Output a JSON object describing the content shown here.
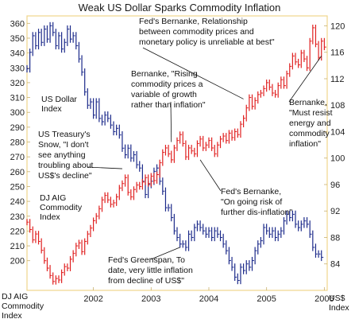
{
  "chart_data": {
    "type": "line",
    "title": "Weak US Dollar Sparks Commodity Inflation",
    "x_ticks": [
      "2002",
      "2003",
      "2004",
      "2005",
      "2006"
    ],
    "left_axis": {
      "label_lines": [
        "DJ AIG",
        "Commodity",
        "Index"
      ],
      "ticks": [
        200,
        210,
        220,
        230,
        240,
        250,
        260,
        270,
        280,
        290,
        300,
        310,
        320,
        330,
        340,
        350,
        360
      ],
      "range": [
        180,
        365
      ]
    },
    "right_axis": {
      "label_lines": [
        "US$",
        "Index"
      ],
      "ticks": [
        84,
        88,
        92,
        96,
        100,
        104,
        108,
        112,
        116,
        120
      ],
      "range": [
        80.0,
        121.5
      ]
    },
    "series": [
      {
        "name": "US Dollar Index",
        "axis": "right",
        "color": "#1c2a8a",
        "points": [
          [
            2001.35,
            113.5
          ],
          [
            2001.4,
            116.0
          ],
          [
            2001.45,
            118.5
          ],
          [
            2001.5,
            117.0
          ],
          [
            2001.55,
            119.0
          ],
          [
            2001.6,
            117.5
          ],
          [
            2001.65,
            119.5
          ],
          [
            2001.7,
            118.0
          ],
          [
            2001.75,
            120.0
          ],
          [
            2001.8,
            119.0
          ],
          [
            2001.85,
            117.0
          ],
          [
            2001.9,
            118.5
          ],
          [
            2001.95,
            116.5
          ],
          [
            2002.0,
            117.5
          ],
          [
            2002.05,
            119.5
          ],
          [
            2002.1,
            118.0
          ],
          [
            2002.15,
            118.5
          ],
          [
            2002.2,
            117.0
          ],
          [
            2002.25,
            115.0
          ],
          [
            2002.3,
            113.0
          ],
          [
            2002.35,
            110.0
          ],
          [
            2002.4,
            108.0
          ],
          [
            2002.45,
            108.5
          ],
          [
            2002.5,
            106.5
          ],
          [
            2002.55,
            108.5
          ],
          [
            2002.6,
            106.0
          ],
          [
            2002.65,
            105.5
          ],
          [
            2002.7,
            106.5
          ],
          [
            2002.75,
            106.0
          ],
          [
            2002.8,
            105.0
          ],
          [
            2002.85,
            104.0
          ],
          [
            2002.9,
            104.5
          ],
          [
            2002.95,
            103.5
          ],
          [
            2003.0,
            101.5
          ],
          [
            2003.05,
            100.5
          ],
          [
            2003.1,
            101.5
          ],
          [
            2003.15,
            100.0
          ],
          [
            2003.2,
            100.5
          ],
          [
            2003.25,
            99.0
          ],
          [
            2003.3,
            98.5
          ],
          [
            2003.35,
            96.5
          ],
          [
            2003.4,
            94.5
          ],
          [
            2003.45,
            96.0
          ],
          [
            2003.5,
            96.5
          ],
          [
            2003.55,
            98.0
          ],
          [
            2003.6,
            98.5
          ],
          [
            2003.65,
            96.5
          ],
          [
            2003.7,
            95.0
          ],
          [
            2003.75,
            92.5
          ],
          [
            2003.8,
            92.5
          ],
          [
            2003.85,
            91.0
          ],
          [
            2003.9,
            89.0
          ],
          [
            2003.95,
            88.0
          ],
          [
            2004.0,
            87.0
          ],
          [
            2004.05,
            87.0
          ],
          [
            2004.1,
            86.5
          ],
          [
            2004.15,
            88.5
          ],
          [
            2004.2,
            88.0
          ],
          [
            2004.25,
            89.5
          ],
          [
            2004.3,
            90.0
          ],
          [
            2004.35,
            89.5
          ],
          [
            2004.4,
            89.0
          ],
          [
            2004.45,
            88.5
          ],
          [
            2004.5,
            89.0
          ],
          [
            2004.55,
            88.0
          ],
          [
            2004.6,
            89.0
          ],
          [
            2004.65,
            88.5
          ],
          [
            2004.7,
            88.0
          ],
          [
            2004.75,
            87.0
          ],
          [
            2004.8,
            86.0
          ],
          [
            2004.85,
            84.5
          ],
          [
            2004.9,
            83.5
          ],
          [
            2004.95,
            82.0
          ],
          [
            2005.0,
            81.5
          ],
          [
            2005.05,
            83.5
          ],
          [
            2005.1,
            83.0
          ],
          [
            2005.15,
            84.0
          ],
          [
            2005.2,
            83.5
          ],
          [
            2005.25,
            84.5
          ],
          [
            2005.3,
            86.0
          ],
          [
            2005.35,
            87.0
          ],
          [
            2005.4,
            87.5
          ],
          [
            2005.45,
            89.5
          ],
          [
            2005.5,
            89.0
          ],
          [
            2005.55,
            88.5
          ],
          [
            2005.6,
            89.0
          ],
          [
            2005.65,
            88.0
          ],
          [
            2005.7,
            88.5
          ],
          [
            2005.75,
            89.0
          ],
          [
            2005.8,
            90.5
          ],
          [
            2005.85,
            91.5
          ],
          [
            2005.9,
            91.0
          ],
          [
            2005.95,
            91.5
          ],
          [
            2006.0,
            90.0
          ],
          [
            2006.05,
            89.5
          ],
          [
            2006.1,
            90.0
          ],
          [
            2006.15,
            90.5
          ],
          [
            2006.2,
            90.0
          ],
          [
            2006.25,
            88.5
          ],
          [
            2006.3,
            86.5
          ],
          [
            2006.35,
            85.5
          ],
          [
            2006.4,
            85.5
          ],
          [
            2006.45,
            85.0
          ]
        ]
      },
      {
        "name": "DJ AIG Commodity Index",
        "axis": "left",
        "color": "#e02020",
        "points": [
          [
            2001.35,
            226
          ],
          [
            2001.4,
            221
          ],
          [
            2001.45,
            214
          ],
          [
            2001.5,
            218
          ],
          [
            2001.55,
            213
          ],
          [
            2001.6,
            207
          ],
          [
            2001.65,
            200
          ],
          [
            2001.7,
            195
          ],
          [
            2001.75,
            190
          ],
          [
            2001.8,
            186
          ],
          [
            2001.85,
            188
          ],
          [
            2001.9,
            187
          ],
          [
            2001.95,
            192
          ],
          [
            2002.0,
            196
          ],
          [
            2002.05,
            195
          ],
          [
            2002.1,
            201
          ],
          [
            2002.15,
            205
          ],
          [
            2002.2,
            210
          ],
          [
            2002.25,
            212
          ],
          [
            2002.3,
            206
          ],
          [
            2002.35,
            213
          ],
          [
            2002.4,
            218
          ],
          [
            2002.45,
            222
          ],
          [
            2002.5,
            227
          ],
          [
            2002.55,
            230
          ],
          [
            2002.6,
            235
          ],
          [
            2002.65,
            241
          ],
          [
            2002.7,
            244
          ],
          [
            2002.75,
            241
          ],
          [
            2002.8,
            238
          ],
          [
            2002.85,
            239
          ],
          [
            2002.9,
            243
          ],
          [
            2002.95,
            249
          ],
          [
            2003.0,
            252
          ],
          [
            2003.05,
            256
          ],
          [
            2003.1,
            246
          ],
          [
            2003.15,
            243
          ],
          [
            2003.2,
            248
          ],
          [
            2003.25,
            251
          ],
          [
            2003.3,
            250
          ],
          [
            2003.35,
            253
          ],
          [
            2003.4,
            256
          ],
          [
            2003.45,
            252
          ],
          [
            2003.5,
            257
          ],
          [
            2003.55,
            254
          ],
          [
            2003.6,
            258
          ],
          [
            2003.65,
            266
          ],
          [
            2003.7,
            273
          ],
          [
            2003.75,
            276
          ],
          [
            2003.8,
            272
          ],
          [
            2003.85,
            268
          ],
          [
            2003.9,
            276
          ],
          [
            2003.95,
            281
          ],
          [
            2004.0,
            285
          ],
          [
            2004.05,
            279
          ],
          [
            2004.1,
            270
          ],
          [
            2004.15,
            276
          ],
          [
            2004.2,
            274
          ],
          [
            2004.25,
            272
          ],
          [
            2004.3,
            279
          ],
          [
            2004.35,
            282
          ],
          [
            2004.4,
            276
          ],
          [
            2004.45,
            278
          ],
          [
            2004.5,
            281
          ],
          [
            2004.55,
            276
          ],
          [
            2004.6,
            272
          ],
          [
            2004.65,
            278
          ],
          [
            2004.7,
            282
          ],
          [
            2004.75,
            284
          ],
          [
            2004.8,
            281
          ],
          [
            2004.85,
            286
          ],
          [
            2004.9,
            283
          ],
          [
            2004.95,
            287
          ],
          [
            2005.0,
            285
          ],
          [
            2005.05,
            292
          ],
          [
            2005.1,
            296
          ],
          [
            2005.15,
            303
          ],
          [
            2005.2,
            310
          ],
          [
            2005.25,
            304
          ],
          [
            2005.3,
            308
          ],
          [
            2005.35,
            312
          ],
          [
            2005.4,
            313
          ],
          [
            2005.45,
            316
          ],
          [
            2005.5,
            320
          ],
          [
            2005.55,
            317
          ],
          [
            2005.6,
            313
          ],
          [
            2005.65,
            312
          ],
          [
            2005.7,
            318
          ],
          [
            2005.75,
            322
          ],
          [
            2005.8,
            318
          ],
          [
            2005.85,
            326
          ],
          [
            2005.9,
            331
          ],
          [
            2005.95,
            338
          ],
          [
            2006.0,
            334
          ],
          [
            2006.05,
            332
          ],
          [
            2006.1,
            340
          ],
          [
            2006.15,
            336
          ],
          [
            2006.2,
            330
          ],
          [
            2006.25,
            348
          ],
          [
            2006.3,
            357
          ],
          [
            2006.35,
            346
          ],
          [
            2006.4,
            337
          ],
          [
            2006.45,
            348
          ],
          [
            2006.5,
            344
          ]
        ]
      }
    ],
    "labels": [
      {
        "key": "usd",
        "lines": [
          "US Dollar",
          "Index"
        ],
        "color": "#1c2a8a"
      },
      {
        "key": "commodity",
        "lines": [
          "DJ AIG",
          "Commodity",
          "Index"
        ],
        "color": "#e02020"
      }
    ],
    "annotations": [
      {
        "key": "a1",
        "lines": [
          "Fed's Bernanke, Relationship",
          "between commodity prices and",
          "monetary policy is unreliable at best\""
        ],
        "pointer": [
          2005.1,
          309
        ]
      },
      {
        "key": "a2",
        "lines": [
          "Bernanke, \"Rising",
          "commodity prices a",
          "variable of growth",
          "rather than inflation\""
        ],
        "pointer": [
          2003.85,
          280
        ]
      },
      {
        "key": "a3",
        "lines": [
          "Bernanke,",
          "\"Must resist",
          "energy and",
          "commodity",
          "inflation\""
        ],
        "pointer": [
          2006.45,
          338
        ]
      },
      {
        "key": "a4",
        "lines": [
          "US Treasury's",
          "Snow, \"I don't",
          "see anything",
          "troubling about",
          "US$'s decline\""
        ],
        "pointer": [
          2003.0,
          262
        ]
      },
      {
        "key": "a5",
        "lines": [
          "Fed's Bernanke,",
          "\"On going risk of",
          "further dis-inflation\""
        ],
        "pointer": [
          2004.35,
          268
        ]
      },
      {
        "key": "a6",
        "lines": [
          "Fed's Greenspan, To",
          "date, very little inflation",
          "from decline of US$\""
        ],
        "pointer": [
          2004.0,
          209
        ]
      }
    ],
    "grid": false
  }
}
